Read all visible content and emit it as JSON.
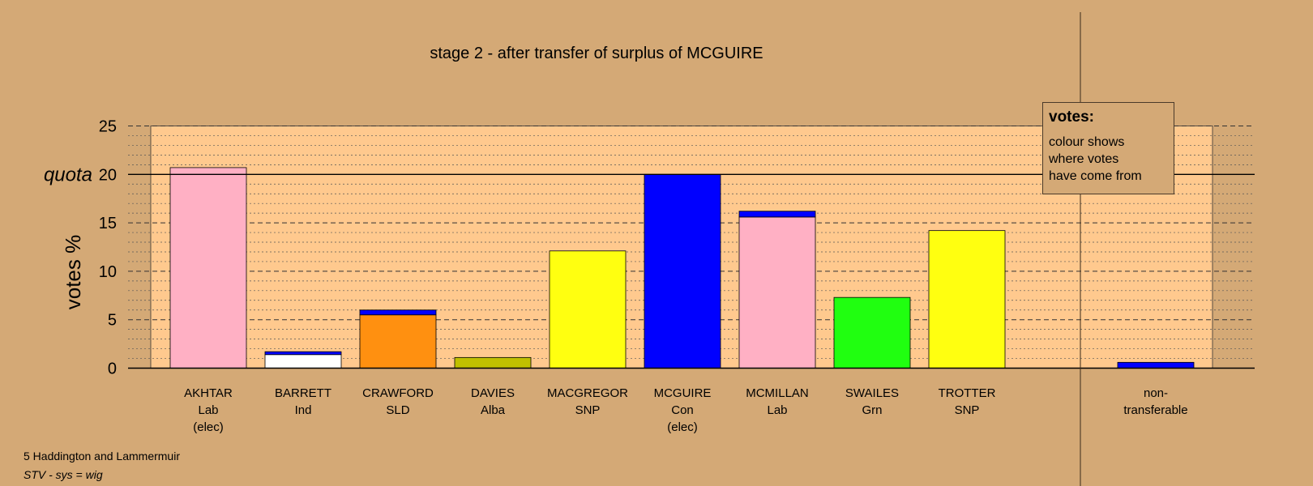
{
  "chart_data": {
    "type": "bar",
    "stacked": true,
    "title": "stage 2 - after transfer of surplus of MCGUIRE",
    "ylabel": "votes %",
    "quota_label": "quota",
    "quota": 20,
    "ylim": [
      0,
      25
    ],
    "yticks": [
      0,
      5,
      10,
      15,
      20,
      25
    ],
    "grid": "dotted minor, dashed major",
    "candidates": [
      {
        "name": "AKHTAR",
        "party": "Lab",
        "note": "(elec)",
        "segments": [
          {
            "value": 20.7,
            "color": "#ffb0c4"
          }
        ]
      },
      {
        "name": "BARRETT",
        "party": "Ind",
        "note": "",
        "segments": [
          {
            "value": 1.4,
            "color": "#ffffff"
          },
          {
            "value": 0.3,
            "color": "#0000ff"
          }
        ]
      },
      {
        "name": "CRAWFORD",
        "party": "SLD",
        "note": "",
        "segments": [
          {
            "value": 5.5,
            "color": "#ff9010"
          },
          {
            "value": 0.5,
            "color": "#0000ff"
          }
        ]
      },
      {
        "name": "DAVIES",
        "party": "Alba",
        "note": "",
        "segments": [
          {
            "value": 1.1,
            "color": "#c0c000"
          }
        ]
      },
      {
        "name": "MACGREGOR",
        "party": "SNP",
        "note": "",
        "segments": [
          {
            "value": 12.1,
            "color": "#ffff10"
          }
        ]
      },
      {
        "name": "MCGUIRE",
        "party": "Con",
        "note": "(elec)",
        "segments": [
          {
            "value": 20.0,
            "color": "#0000ff"
          }
        ]
      },
      {
        "name": "MCMILLAN",
        "party": "Lab",
        "note": "",
        "segments": [
          {
            "value": 15.6,
            "color": "#ffb0c4"
          },
          {
            "value": 0.6,
            "color": "#0000ff"
          }
        ]
      },
      {
        "name": "SWAILES",
        "party": "Grn",
        "note": "",
        "segments": [
          {
            "value": 7.3,
            "color": "#20ff10"
          }
        ]
      },
      {
        "name": "TROTTER",
        "party": "SNP",
        "note": "",
        "segments": [
          {
            "value": 14.2,
            "color": "#ffff10"
          }
        ]
      }
    ],
    "non_transferable": {
      "label_line1": "non-",
      "label_line2": "transferable",
      "value": 0.6,
      "color": "#0000ff"
    },
    "colors": {
      "background": "#d4a976",
      "plot_area": "#ffc98e",
      "axis": "#000000"
    }
  },
  "legend": {
    "title": "votes:",
    "lines": [
      "colour shows",
      "where votes",
      "have come from"
    ]
  },
  "footer": {
    "constituency": "5 Haddington and Lammermuir",
    "system": "STV - sys = wig"
  }
}
